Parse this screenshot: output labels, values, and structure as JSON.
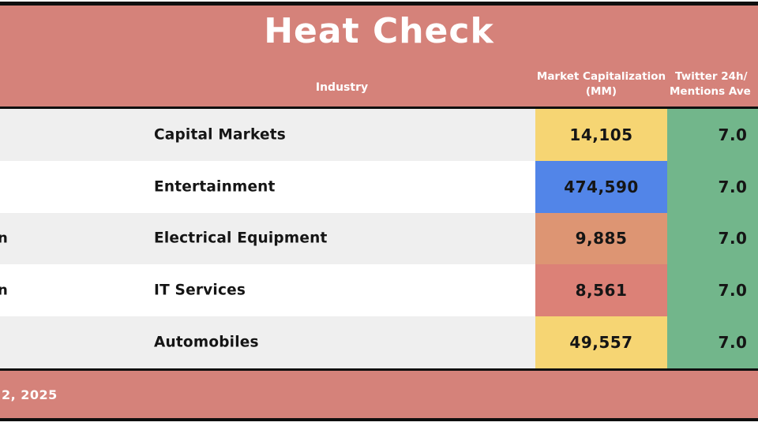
{
  "title": "Heat Check",
  "colors": {
    "banner": "#d5827a",
    "green_cell": "#72b68b",
    "yellow_cell": "#f6d573",
    "blue_cell": "#5285e8",
    "orange_cell": "#dd9573",
    "red_cell": "#dc8177",
    "row_alt": "#efefef",
    "border": "#0f0f0f"
  },
  "table": {
    "headers": {
      "industry": "Industry",
      "market_cap_line1": "Market",
      "market_cap_line2": "Capitalization (MM)",
      "twitter_line1": "Twitter 24h/",
      "twitter_line2": "Mentions Ave"
    },
    "rows": [
      {
        "left_fragment": "",
        "industry": "Capital Markets",
        "market_cap": "14,105",
        "market_cap_color": "#f6d573",
        "twitter": "7.0",
        "twitter_color": "#72b68b"
      },
      {
        "left_fragment": "",
        "industry": "Entertainment",
        "market_cap": "474,590",
        "market_cap_color": "#5285e8",
        "twitter": "7.0",
        "twitter_color": "#72b68b"
      },
      {
        "left_fragment": "n",
        "industry": "Electrical Equipment",
        "market_cap": "9,885",
        "market_cap_color": "#dd9573",
        "twitter": "7.0",
        "twitter_color": "#72b68b"
      },
      {
        "left_fragment": "n",
        "industry": "IT Services",
        "market_cap": "8,561",
        "market_cap_color": "#dc8177",
        "twitter": "7.0",
        "twitter_color": "#72b68b"
      },
      {
        "left_fragment": "",
        "industry": "Automobiles",
        "market_cap": "49,557",
        "market_cap_color": "#f6d573",
        "twitter": "7.0",
        "twitter_color": "#72b68b"
      }
    ]
  },
  "footer": {
    "date_fragment": "2, 2025"
  },
  "chart_data": {
    "type": "table",
    "title": "Heat Check",
    "columns": [
      "Industry",
      "Market Capitalization (MM)",
      "Twitter 24h/ Mentions Ave"
    ],
    "rows": [
      [
        "Capital Markets",
        14105,
        7.0
      ],
      [
        "Entertainment",
        474590,
        7.0
      ],
      [
        "Electrical Equipment",
        9885,
        7.0
      ],
      [
        "IT Services",
        8561,
        7.0
      ],
      [
        "Automobiles",
        49557,
        7.0
      ]
    ],
    "market_cap_cell_colors": [
      "#f6d573",
      "#5285e8",
      "#dd9573",
      "#dc8177",
      "#f6d573"
    ],
    "twitter_cell_color": "#72b68b",
    "notes_layout": "banner header and footer in salmon, alternating gray/white industry rows, heat-colored value cells"
  }
}
